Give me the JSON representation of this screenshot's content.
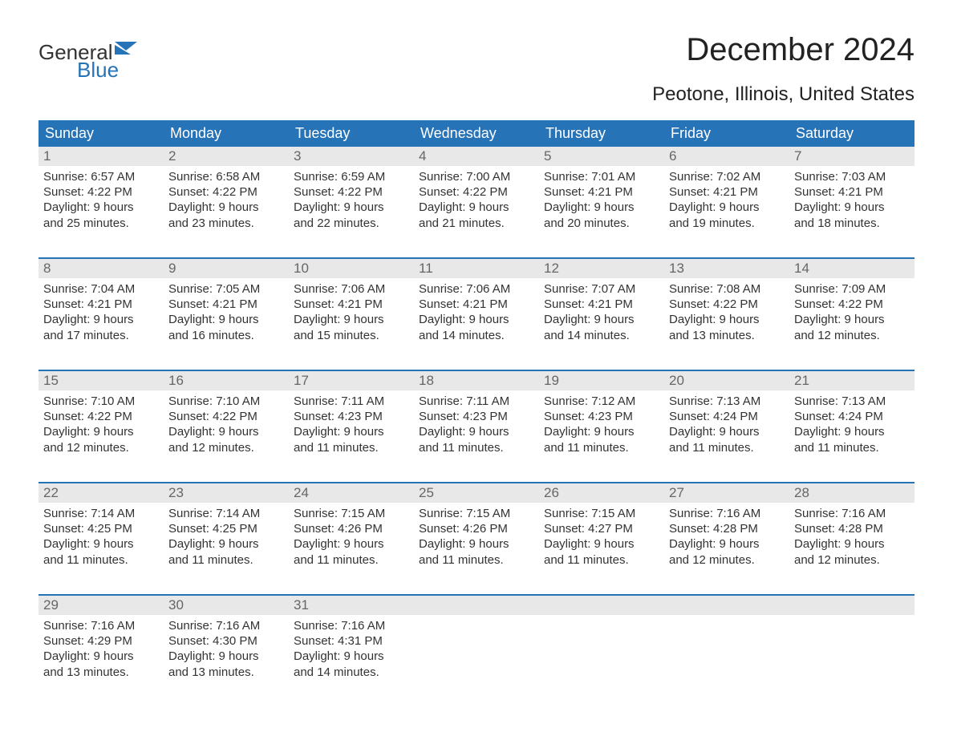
{
  "logo": {
    "general": "General",
    "blue": "Blue",
    "flag_color": "#2673b8"
  },
  "title": "December 2024",
  "subtitle": "Peotone, Illinois, United States",
  "colors": {
    "header_bg": "#2673b8",
    "header_text": "#ffffff",
    "daynum_bg": "#e8e8e8",
    "daynum_text": "#666666",
    "body_text": "#333333",
    "rule": "#2673b8",
    "page_bg": "#ffffff"
  },
  "day_headers": [
    "Sunday",
    "Monday",
    "Tuesday",
    "Wednesday",
    "Thursday",
    "Friday",
    "Saturday"
  ],
  "weeks": [
    [
      {
        "n": "1",
        "sunrise": "Sunrise: 6:57 AM",
        "sunset": "Sunset: 4:22 PM",
        "d1": "Daylight: 9 hours",
        "d2": "and 25 minutes."
      },
      {
        "n": "2",
        "sunrise": "Sunrise: 6:58 AM",
        "sunset": "Sunset: 4:22 PM",
        "d1": "Daylight: 9 hours",
        "d2": "and 23 minutes."
      },
      {
        "n": "3",
        "sunrise": "Sunrise: 6:59 AM",
        "sunset": "Sunset: 4:22 PM",
        "d1": "Daylight: 9 hours",
        "d2": "and 22 minutes."
      },
      {
        "n": "4",
        "sunrise": "Sunrise: 7:00 AM",
        "sunset": "Sunset: 4:22 PM",
        "d1": "Daylight: 9 hours",
        "d2": "and 21 minutes."
      },
      {
        "n": "5",
        "sunrise": "Sunrise: 7:01 AM",
        "sunset": "Sunset: 4:21 PM",
        "d1": "Daylight: 9 hours",
        "d2": "and 20 minutes."
      },
      {
        "n": "6",
        "sunrise": "Sunrise: 7:02 AM",
        "sunset": "Sunset: 4:21 PM",
        "d1": "Daylight: 9 hours",
        "d2": "and 19 minutes."
      },
      {
        "n": "7",
        "sunrise": "Sunrise: 7:03 AM",
        "sunset": "Sunset: 4:21 PM",
        "d1": "Daylight: 9 hours",
        "d2": "and 18 minutes."
      }
    ],
    [
      {
        "n": "8",
        "sunrise": "Sunrise: 7:04 AM",
        "sunset": "Sunset: 4:21 PM",
        "d1": "Daylight: 9 hours",
        "d2": "and 17 minutes."
      },
      {
        "n": "9",
        "sunrise": "Sunrise: 7:05 AM",
        "sunset": "Sunset: 4:21 PM",
        "d1": "Daylight: 9 hours",
        "d2": "and 16 minutes."
      },
      {
        "n": "10",
        "sunrise": "Sunrise: 7:06 AM",
        "sunset": "Sunset: 4:21 PM",
        "d1": "Daylight: 9 hours",
        "d2": "and 15 minutes."
      },
      {
        "n": "11",
        "sunrise": "Sunrise: 7:06 AM",
        "sunset": "Sunset: 4:21 PM",
        "d1": "Daylight: 9 hours",
        "d2": "and 14 minutes."
      },
      {
        "n": "12",
        "sunrise": "Sunrise: 7:07 AM",
        "sunset": "Sunset: 4:21 PM",
        "d1": "Daylight: 9 hours",
        "d2": "and 14 minutes."
      },
      {
        "n": "13",
        "sunrise": "Sunrise: 7:08 AM",
        "sunset": "Sunset: 4:22 PM",
        "d1": "Daylight: 9 hours",
        "d2": "and 13 minutes."
      },
      {
        "n": "14",
        "sunrise": "Sunrise: 7:09 AM",
        "sunset": "Sunset: 4:22 PM",
        "d1": "Daylight: 9 hours",
        "d2": "and 12 minutes."
      }
    ],
    [
      {
        "n": "15",
        "sunrise": "Sunrise: 7:10 AM",
        "sunset": "Sunset: 4:22 PM",
        "d1": "Daylight: 9 hours",
        "d2": "and 12 minutes."
      },
      {
        "n": "16",
        "sunrise": "Sunrise: 7:10 AM",
        "sunset": "Sunset: 4:22 PM",
        "d1": "Daylight: 9 hours",
        "d2": "and 12 minutes."
      },
      {
        "n": "17",
        "sunrise": "Sunrise: 7:11 AM",
        "sunset": "Sunset: 4:23 PM",
        "d1": "Daylight: 9 hours",
        "d2": "and 11 minutes."
      },
      {
        "n": "18",
        "sunrise": "Sunrise: 7:11 AM",
        "sunset": "Sunset: 4:23 PM",
        "d1": "Daylight: 9 hours",
        "d2": "and 11 minutes."
      },
      {
        "n": "19",
        "sunrise": "Sunrise: 7:12 AM",
        "sunset": "Sunset: 4:23 PM",
        "d1": "Daylight: 9 hours",
        "d2": "and 11 minutes."
      },
      {
        "n": "20",
        "sunrise": "Sunrise: 7:13 AM",
        "sunset": "Sunset: 4:24 PM",
        "d1": "Daylight: 9 hours",
        "d2": "and 11 minutes."
      },
      {
        "n": "21",
        "sunrise": "Sunrise: 7:13 AM",
        "sunset": "Sunset: 4:24 PM",
        "d1": "Daylight: 9 hours",
        "d2": "and 11 minutes."
      }
    ],
    [
      {
        "n": "22",
        "sunrise": "Sunrise: 7:14 AM",
        "sunset": "Sunset: 4:25 PM",
        "d1": "Daylight: 9 hours",
        "d2": "and 11 minutes."
      },
      {
        "n": "23",
        "sunrise": "Sunrise: 7:14 AM",
        "sunset": "Sunset: 4:25 PM",
        "d1": "Daylight: 9 hours",
        "d2": "and 11 minutes."
      },
      {
        "n": "24",
        "sunrise": "Sunrise: 7:15 AM",
        "sunset": "Sunset: 4:26 PM",
        "d1": "Daylight: 9 hours",
        "d2": "and 11 minutes."
      },
      {
        "n": "25",
        "sunrise": "Sunrise: 7:15 AM",
        "sunset": "Sunset: 4:26 PM",
        "d1": "Daylight: 9 hours",
        "d2": "and 11 minutes."
      },
      {
        "n": "26",
        "sunrise": "Sunrise: 7:15 AM",
        "sunset": "Sunset: 4:27 PM",
        "d1": "Daylight: 9 hours",
        "d2": "and 11 minutes."
      },
      {
        "n": "27",
        "sunrise": "Sunrise: 7:16 AM",
        "sunset": "Sunset: 4:28 PM",
        "d1": "Daylight: 9 hours",
        "d2": "and 12 minutes."
      },
      {
        "n": "28",
        "sunrise": "Sunrise: 7:16 AM",
        "sunset": "Sunset: 4:28 PM",
        "d1": "Daylight: 9 hours",
        "d2": "and 12 minutes."
      }
    ],
    [
      {
        "n": "29",
        "sunrise": "Sunrise: 7:16 AM",
        "sunset": "Sunset: 4:29 PM",
        "d1": "Daylight: 9 hours",
        "d2": "and 13 minutes."
      },
      {
        "n": "30",
        "sunrise": "Sunrise: 7:16 AM",
        "sunset": "Sunset: 4:30 PM",
        "d1": "Daylight: 9 hours",
        "d2": "and 13 minutes."
      },
      {
        "n": "31",
        "sunrise": "Sunrise: 7:16 AM",
        "sunset": "Sunset: 4:31 PM",
        "d1": "Daylight: 9 hours",
        "d2": "and 14 minutes."
      },
      null,
      null,
      null,
      null
    ]
  ]
}
